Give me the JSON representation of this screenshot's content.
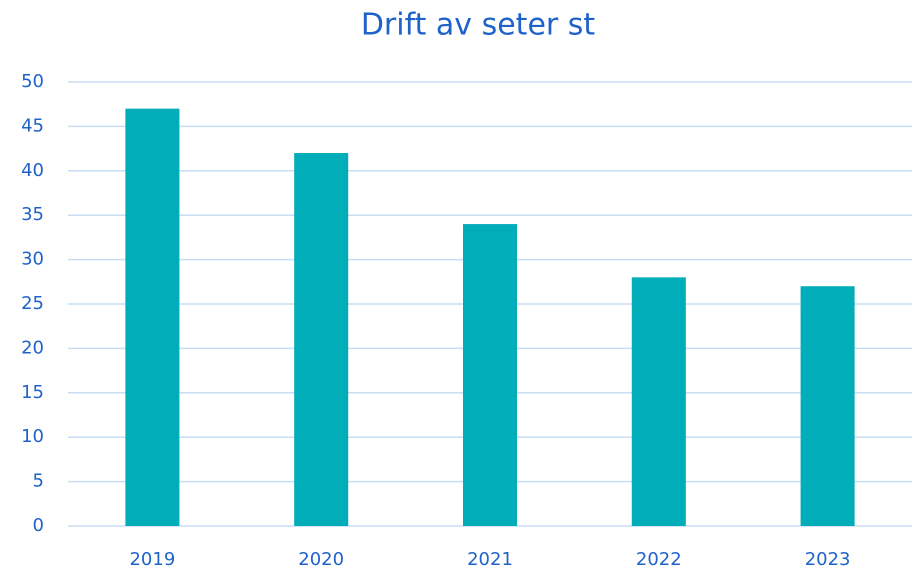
{
  "chart_data": {
    "type": "bar",
    "title": "Drift av seter st",
    "categories": [
      "2019",
      "2020",
      "2021",
      "2022",
      "2023"
    ],
    "values": [
      47,
      42,
      34,
      28,
      27
    ],
    "color": "#00adb9",
    "ylim": [
      0,
      50
    ],
    "yticks": [
      0,
      5,
      10,
      15,
      20,
      25,
      30,
      35,
      40,
      45,
      50
    ],
    "grid": true
  }
}
